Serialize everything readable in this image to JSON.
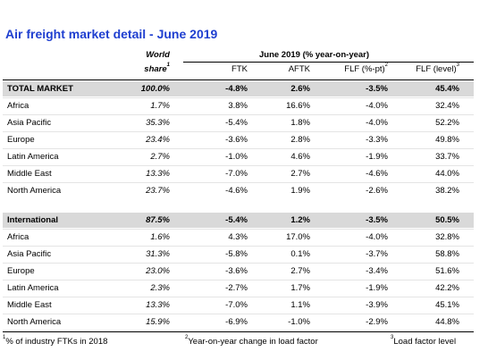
{
  "title": "Air freight market detail - June 2019",
  "header": {
    "world": "World",
    "share": "share",
    "share_sup": "1",
    "period": "June 2019 (% year-on-year)",
    "columns": [
      {
        "text": "FTK"
      },
      {
        "text": "AFTK"
      },
      {
        "text": "FLF (%-pt)",
        "sup": "2"
      },
      {
        "text": "FLF (level)",
        "sup": "3"
      }
    ]
  },
  "sections": [
    {
      "rows": [
        [
          "TOTAL MARKET",
          "100.0%",
          "-4.8%",
          "2.6%",
          "-3.5%",
          "45.4%"
        ],
        [
          "Africa",
          "1.7%",
          "3.8%",
          "16.6%",
          "-4.0%",
          "32.4%"
        ],
        [
          "Asia Pacific",
          "35.3%",
          "-5.4%",
          "1.8%",
          "-4.0%",
          "52.2%"
        ],
        [
          "Europe",
          "23.4%",
          "-3.6%",
          "2.8%",
          "-3.3%",
          "49.8%"
        ],
        [
          "Latin America",
          "2.7%",
          "-1.0%",
          "4.6%",
          "-1.9%",
          "33.7%"
        ],
        [
          "Middle East",
          "13.3%",
          "-7.0%",
          "2.7%",
          "-4.6%",
          "44.0%"
        ],
        [
          "North America",
          "23.7%",
          "-4.6%",
          "1.9%",
          "-2.6%",
          "38.2%"
        ]
      ]
    },
    {
      "rows": [
        [
          "International",
          "87.5%",
          "-5.4%",
          "1.2%",
          "-3.5%",
          "50.5%"
        ],
        [
          "Africa",
          "1.6%",
          "4.3%",
          "17.0%",
          "-4.0%",
          "32.8%"
        ],
        [
          "Asia Pacific",
          "31.3%",
          "-5.8%",
          "0.1%",
          "-3.7%",
          "58.8%"
        ],
        [
          "Europe",
          "23.0%",
          "-3.6%",
          "2.7%",
          "-3.4%",
          "51.6%"
        ],
        [
          "Latin America",
          "2.3%",
          "-2.7%",
          "1.7%",
          "-1.9%",
          "42.2%"
        ],
        [
          "Middle East",
          "13.3%",
          "-7.0%",
          "1.1%",
          "-3.9%",
          "45.1%"
        ],
        [
          "North America",
          "15.9%",
          "-6.9%",
          "-1.0%",
          "-2.9%",
          "44.8%"
        ]
      ]
    }
  ],
  "footnotes": [
    {
      "sup": "1",
      "text": "% of industry FTKs in 2018"
    },
    {
      "sup": "2",
      "text": "Year-on-year change in load factor"
    },
    {
      "sup": "3",
      "text": "Load factor level"
    }
  ]
}
